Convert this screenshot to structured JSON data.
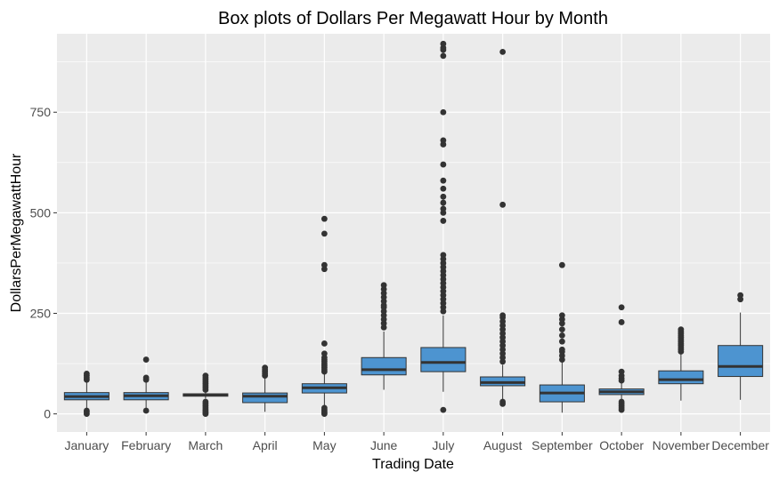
{
  "chart_data": {
    "type": "boxplot",
    "title": "Box plots of Dollars Per Megawatt Hour by Month",
    "xlabel": "Trading Date",
    "ylabel": "DollarsPerMegawattHour",
    "ylim": [
      -45,
      945
    ],
    "yticks": [
      0,
      250,
      500,
      750
    ],
    "grid": true,
    "box_color": "#4d94d0",
    "panel_color": "#ebebeb",
    "categories": [
      "January",
      "February",
      "March",
      "April",
      "May",
      "June",
      "July",
      "August",
      "September",
      "October",
      "November",
      "December"
    ],
    "boxes": [
      {
        "category": "January",
        "whisker_low": 5,
        "q1": 35,
        "median": 43,
        "q3": 53,
        "whisker_high": 80,
        "outliers": [
          0,
          5,
          8,
          85,
          90,
          95,
          100
        ]
      },
      {
        "category": "February",
        "whisker_low": 12,
        "q1": 35,
        "median": 45,
        "q3": 53,
        "whisker_high": 78,
        "outliers": [
          8,
          85,
          90,
          135
        ]
      },
      {
        "category": "March",
        "whisker_low": 38,
        "q1": 44,
        "median": 47,
        "q3": 50,
        "whisker_high": 56,
        "outliers": [
          0,
          3,
          6,
          10,
          15,
          20,
          25,
          30,
          60,
          65,
          70,
          75,
          80,
          85,
          90,
          95
        ]
      },
      {
        "category": "April",
        "whisker_low": 5,
        "q1": 28,
        "median": 44,
        "q3": 52,
        "whisker_high": 90,
        "outliers": [
          95,
          100,
          105,
          110,
          115
        ]
      },
      {
        "category": "May",
        "whisker_low": 20,
        "q1": 52,
        "median": 65,
        "q3": 75,
        "whisker_high": 100,
        "outliers": [
          0,
          3,
          6,
          10,
          15,
          105,
          110,
          115,
          120,
          125,
          130,
          135,
          140,
          150,
          175,
          360,
          370,
          448,
          485
        ]
      },
      {
        "category": "June",
        "whisker_low": 60,
        "q1": 97,
        "median": 110,
        "q3": 140,
        "whisker_high": 205,
        "outliers": [
          215,
          225,
          235,
          245,
          255,
          265,
          270,
          280,
          290,
          300,
          310,
          320
        ]
      },
      {
        "category": "July",
        "whisker_low": 55,
        "q1": 105,
        "median": 128,
        "q3": 165,
        "whisker_high": 245,
        "outliers": [
          10,
          255,
          265,
          275,
          285,
          295,
          305,
          315,
          325,
          335,
          345,
          355,
          365,
          375,
          385,
          395,
          480,
          500,
          510,
          525,
          540,
          560,
          580,
          620,
          670,
          680,
          750,
          890,
          905,
          910,
          920
        ]
      },
      {
        "category": "August",
        "whisker_low": 35,
        "q1": 70,
        "median": 78,
        "q3": 92,
        "whisker_high": 122,
        "outliers": [
          25,
          30,
          130,
          140,
          150,
          160,
          170,
          180,
          190,
          200,
          210,
          220,
          230,
          240,
          245,
          520,
          900
        ]
      },
      {
        "category": "September",
        "whisker_low": 3,
        "q1": 30,
        "median": 52,
        "q3": 72,
        "whisker_high": 128,
        "outliers": [
          135,
          145,
          155,
          160,
          180,
          195,
          210,
          225,
          235,
          245,
          370
        ]
      },
      {
        "category": "October",
        "whisker_low": 35,
        "q1": 48,
        "median": 55,
        "q3": 62,
        "whisker_high": 78,
        "outliers": [
          10,
          15,
          20,
          25,
          30,
          83,
          88,
          95,
          105,
          228,
          265
        ]
      },
      {
        "category": "November",
        "whisker_low": 33,
        "q1": 75,
        "median": 85,
        "q3": 107,
        "whisker_high": 150,
        "outliers": [
          155,
          160,
          165,
          170,
          175,
          180,
          185,
          190,
          195,
          200,
          205,
          210
        ]
      },
      {
        "category": "December",
        "whisker_low": 35,
        "q1": 93,
        "median": 118,
        "q3": 170,
        "whisker_high": 252,
        "outliers": [
          285,
          295
        ]
      }
    ]
  }
}
